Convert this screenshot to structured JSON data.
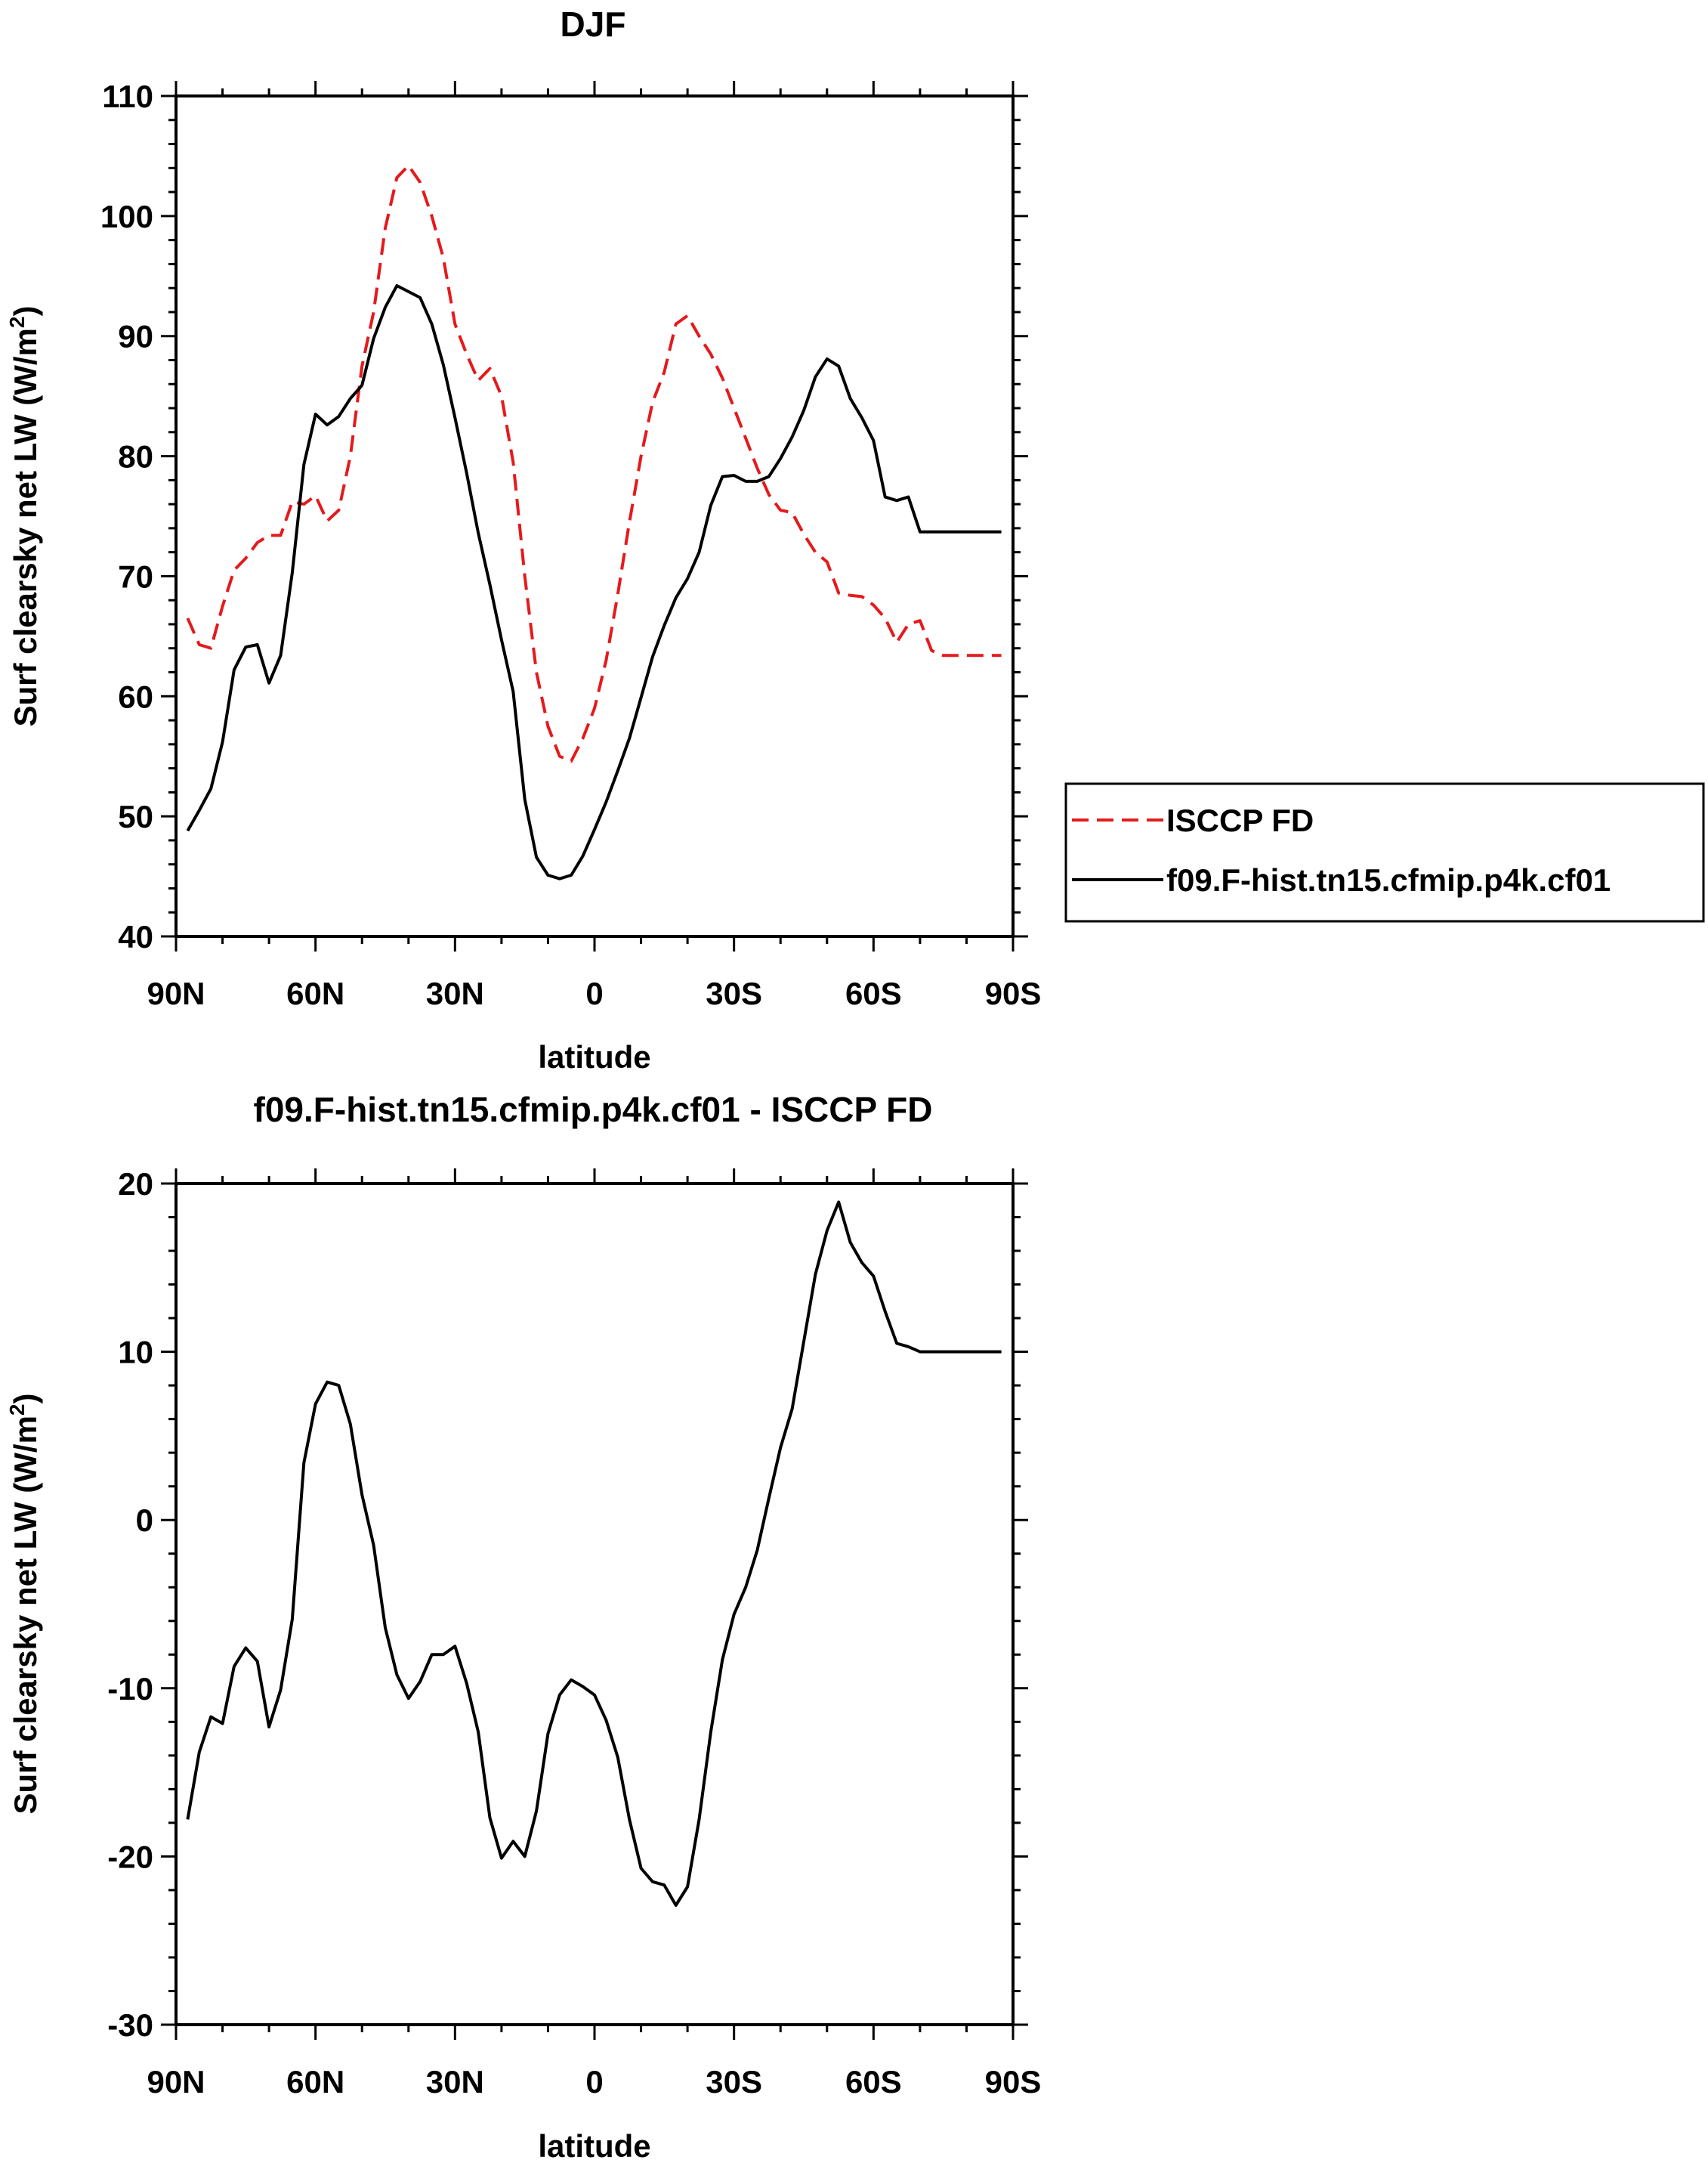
{
  "chart_data": [
    {
      "type": "line",
      "title": "DJF",
      "xlabel": "latitude",
      "ylabel": "Surf clearsky net LW (W/m",
      "ylabel_sup": "2",
      "ylabel_close": ")",
      "xlim": [
        90,
        -90
      ],
      "ylim": [
        40,
        110
      ],
      "x_ticks": [
        90,
        60,
        30,
        0,
        -30,
        -60,
        -90
      ],
      "x_tick_labels": [
        "90N",
        "60N",
        "30N",
        "0",
        "30S",
        "60S",
        "90S"
      ],
      "y_ticks": [
        40,
        50,
        60,
        70,
        80,
        90,
        100,
        110
      ],
      "y_tick_labels": [
        "40",
        "50",
        "60",
        "70",
        "80",
        "90",
        "100",
        "110"
      ],
      "legend_position": "right",
      "x": [
        87.5,
        85,
        82.5,
        80,
        77.5,
        75,
        72.5,
        70,
        67.5,
        65,
        62.5,
        60,
        57.5,
        55,
        52.5,
        50,
        47.5,
        45,
        42.5,
        40,
        37.5,
        35,
        32.5,
        30,
        27.5,
        25,
        22.5,
        20,
        17.5,
        15,
        12.5,
        10,
        7.5,
        5,
        2.5,
        0,
        -2.5,
        -5,
        -7.5,
        -10,
        -12.5,
        -15,
        -17.5,
        -20,
        -22.5,
        -25,
        -27.5,
        -30,
        -32.5,
        -35,
        -37.5,
        -40,
        -42.5,
        -45,
        -47.5,
        -50,
        -52.5,
        -55,
        -57.5,
        -60,
        -62.5,
        -65,
        -67.5,
        -70,
        -72.5,
        -75,
        -77.5,
        -80,
        -82.5,
        -85,
        -87.5
      ],
      "series": [
        {
          "name": "ISCCP FD",
          "color": "#e41a1c",
          "dash": "dashed",
          "values": [
            66.5,
            64.3,
            64.0,
            67.5,
            70.5,
            71.5,
            72.8,
            73.4,
            73.4,
            76.2,
            76.0,
            76.7,
            74.6,
            75.5,
            80.0,
            87.5,
            92.0,
            99.0,
            103.2,
            104.2,
            102.8,
            100.0,
            96.5,
            91.0,
            88.5,
            86.3,
            87.3,
            85.0,
            79.5,
            70.0,
            62.0,
            57.5,
            55.0,
            54.6,
            56.5,
            59.0,
            63.0,
            68.5,
            74.5,
            80.0,
            84.5,
            87.0,
            91.0,
            91.7,
            90.0,
            88.5,
            86.5,
            84.0,
            81.5,
            79.0,
            76.8,
            75.5,
            75.3,
            73.5,
            72.0,
            71.2,
            68.6,
            68.4,
            68.3,
            67.6,
            66.5,
            64.5,
            66.0,
            66.3,
            63.8,
            63.4,
            63.4,
            63.4,
            63.4,
            63.4,
            63.4
          ]
        },
        {
          "name": "f09.F-hist.tn15.cfmip.p4k.cf01",
          "color": "#000000",
          "dash": "solid",
          "values": [
            48.8,
            50.5,
            52.3,
            56.2,
            62.2,
            64.1,
            64.3,
            61.1,
            63.4,
            70.3,
            79.3,
            83.5,
            82.6,
            83.3,
            84.8,
            85.9,
            89.8,
            92.4,
            94.2,
            93.7,
            93.2,
            91.0,
            87.6,
            83.2,
            78.6,
            73.6,
            69.3,
            64.7,
            60.4,
            51.4,
            46.6,
            45.1,
            44.8,
            45.1,
            46.7,
            48.9,
            51.2,
            53.8,
            56.5,
            59.9,
            63.3,
            65.9,
            68.2,
            69.8,
            72.0,
            75.9,
            78.3,
            78.4,
            77.9,
            77.9,
            78.3,
            79.8,
            81.6,
            83.8,
            86.6,
            88.1,
            87.5,
            84.8,
            83.2,
            81.3,
            76.6,
            76.3,
            76.6,
            73.7,
            73.7,
            73.7,
            73.7,
            73.7,
            73.7,
            73.7,
            73.7
          ]
        }
      ]
    },
    {
      "type": "line",
      "title": "f09.F-hist.tn15.cfmip.p4k.cf01 - ISCCP FD",
      "xlabel": "latitude",
      "ylabel": "Surf clearsky net LW (W/m",
      "ylabel_sup": "2",
      "ylabel_close": ")",
      "xlim": [
        90,
        -90
      ],
      "ylim": [
        -30,
        20
      ],
      "x_ticks": [
        90,
        60,
        30,
        0,
        -30,
        -60,
        -90
      ],
      "x_tick_labels": [
        "90N",
        "60N",
        "30N",
        "0",
        "30S",
        "60S",
        "90S"
      ],
      "y_ticks": [
        -30,
        -20,
        -10,
        0,
        10,
        20
      ],
      "y_tick_labels": [
        "-30",
        "-20",
        "-10",
        "0",
        "10",
        "20"
      ],
      "x": [
        87.5,
        85,
        82.5,
        80,
        77.5,
        75,
        72.5,
        70,
        67.5,
        65,
        62.5,
        60,
        57.5,
        55,
        52.5,
        50,
        47.5,
        45,
        42.5,
        40,
        37.5,
        35,
        32.5,
        30,
        27.5,
        25,
        22.5,
        20,
        17.5,
        15,
        12.5,
        10,
        7.5,
        5,
        2.5,
        0,
        -2.5,
        -5,
        -7.5,
        -10,
        -12.5,
        -15,
        -17.5,
        -20,
        -22.5,
        -25,
        -27.5,
        -30,
        -32.5,
        -35,
        -37.5,
        -40,
        -42.5,
        -45,
        -47.5,
        -50,
        -52.5,
        -55,
        -57.5,
        -60,
        -62.5,
        -65,
        -67.5,
        -70,
        -72.5,
        -75,
        -77.5,
        -80,
        -82.5,
        -85,
        -87.5
      ],
      "series": [
        {
          "color": "#000000",
          "dash": "solid",
          "values": [
            -17.8,
            -13.8,
            -11.7,
            -12.1,
            -8.7,
            -7.6,
            -8.4,
            -12.3,
            -10.1,
            -5.9,
            3.4,
            6.9,
            8.2,
            8.0,
            5.7,
            1.5,
            -1.5,
            -6.4,
            -9.2,
            -10.6,
            -9.6,
            -8.0,
            -8.0,
            -7.5,
            -9.7,
            -12.6,
            -17.7,
            -20.1,
            -19.1,
            -20.0,
            -17.3,
            -12.7,
            -10.4,
            -9.5,
            -9.9,
            -10.4,
            -11.9,
            -14.1,
            -17.8,
            -20.7,
            -21.5,
            -21.7,
            -22.9,
            -21.8,
            -17.8,
            -12.6,
            -8.3,
            -5.6,
            -4.0,
            -1.8,
            1.3,
            4.3,
            6.6,
            10.6,
            14.6,
            17.2,
            18.9,
            16.5,
            15.3,
            14.5,
            12.4,
            10.5,
            10.3,
            10.0,
            10.0,
            10.0,
            10.0,
            10.0,
            10.0,
            10.0,
            10.0
          ]
        }
      ]
    }
  ]
}
